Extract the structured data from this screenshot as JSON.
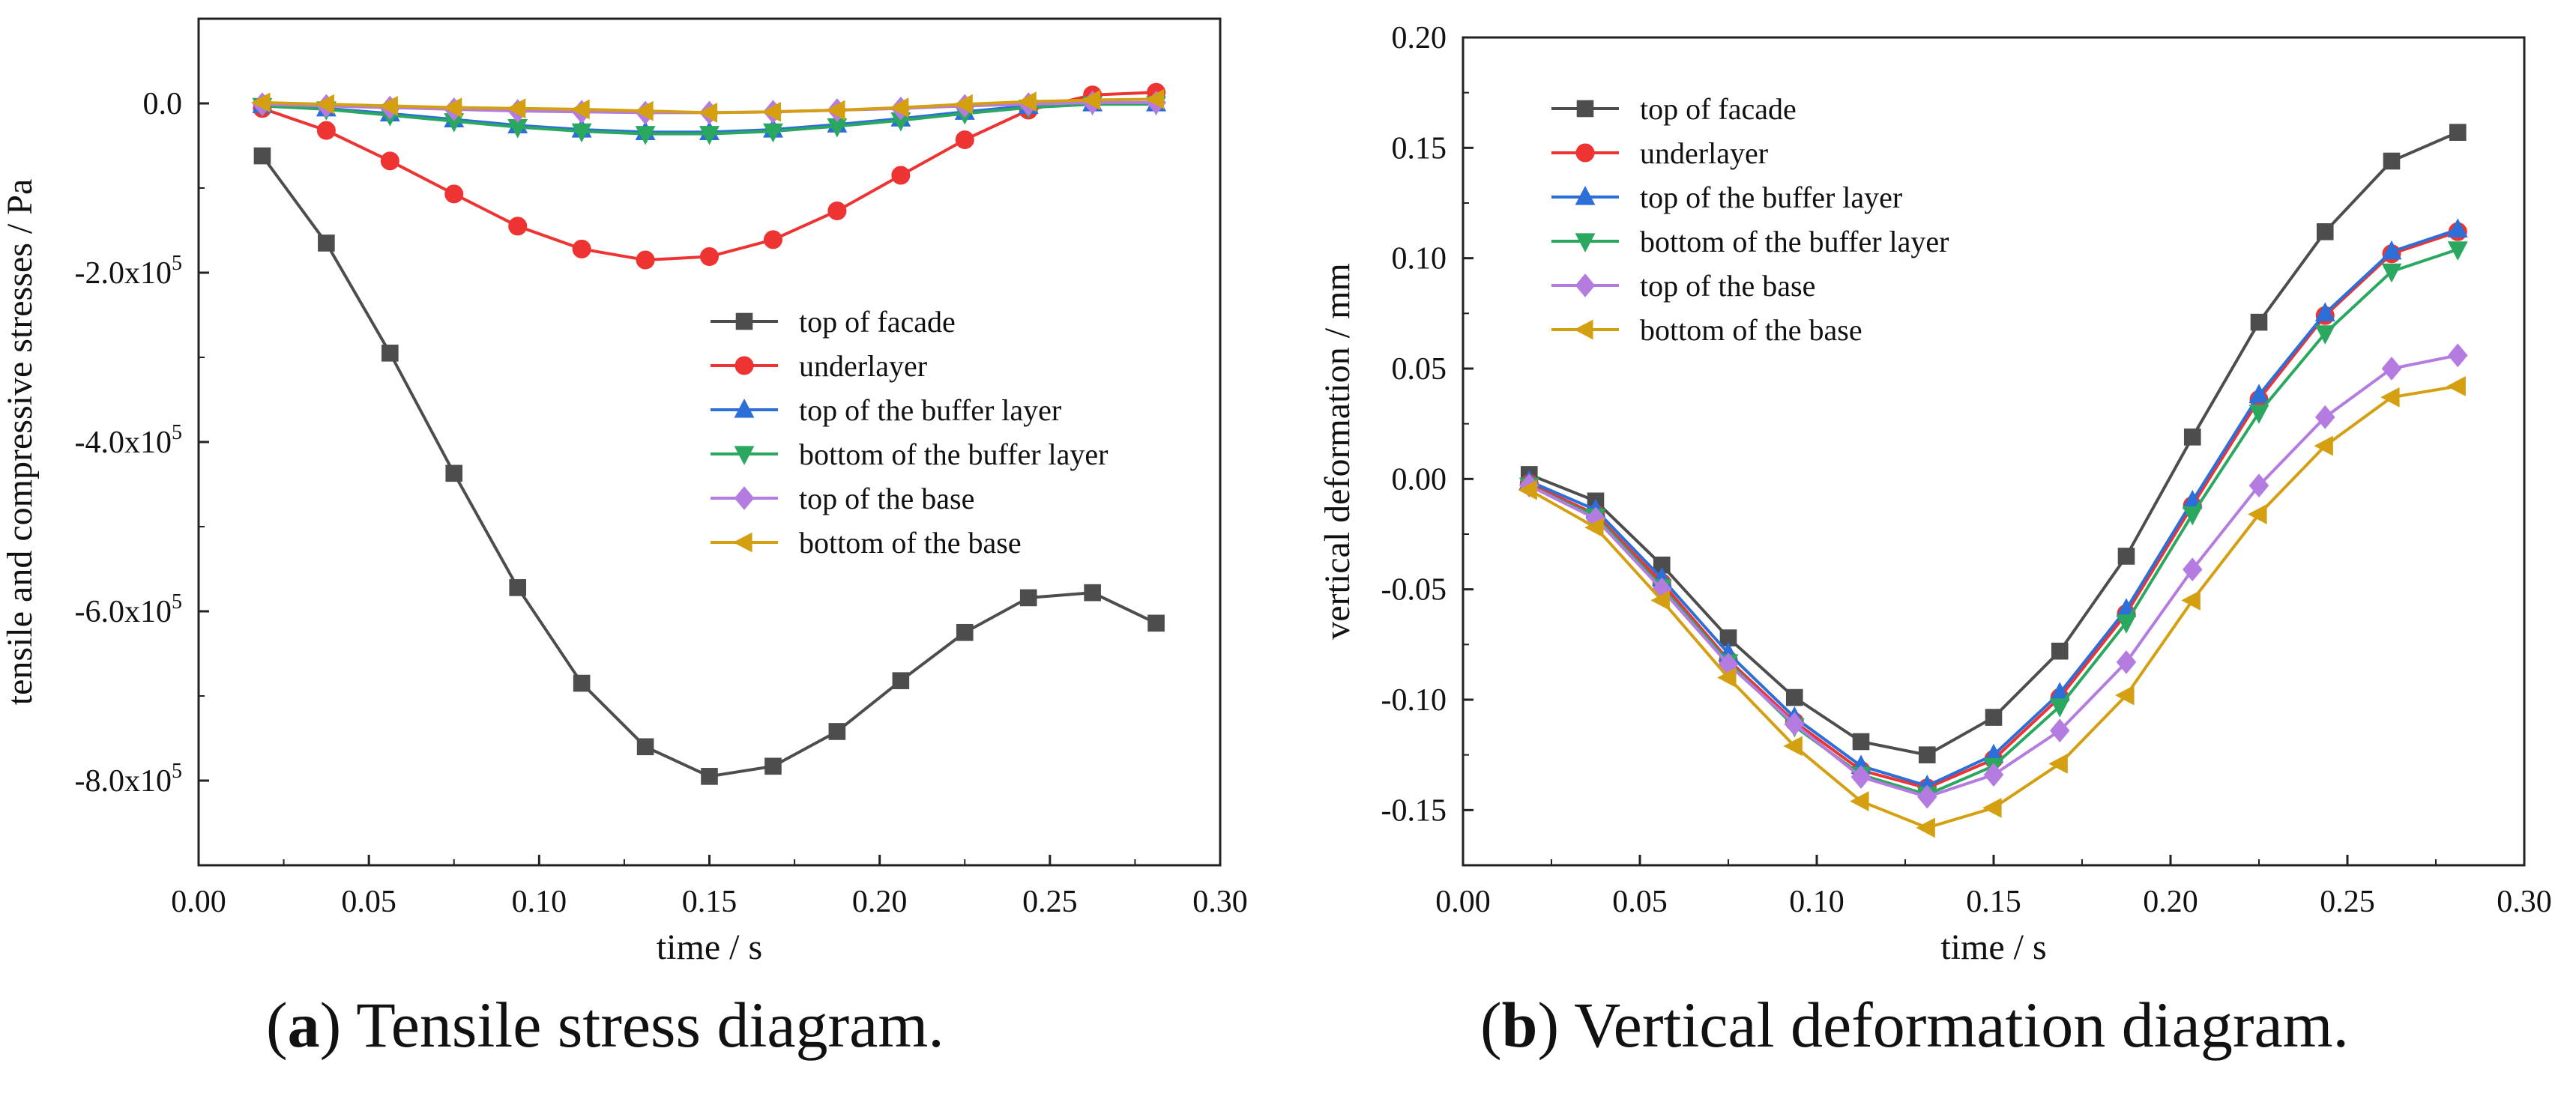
{
  "chart_data": [
    {
      "type": "line",
      "panel": "a",
      "caption_label": "a",
      "caption_text": "Tensile stress diagram.",
      "xlabel": "time / s",
      "ylabel": "tensile and compressive stresses / Pa",
      "xlim": [
        0.0,
        0.3
      ],
      "ylim": [
        -900000,
        100000
      ],
      "x_ticks": [
        0.0,
        0.05,
        0.1,
        0.15,
        0.2,
        0.25,
        0.3
      ],
      "x_tick_labels": [
        "0.00",
        "0.05",
        "0.10",
        "0.15",
        "0.20",
        "0.25",
        "0.30"
      ],
      "y_ticks": [
        0,
        -200000,
        -400000,
        -600000,
        -800000
      ],
      "y_tick_labels": [
        {
          "base": "0.0",
          "exp": ""
        },
        {
          "base": "-2.0x10",
          "exp": "5"
        },
        {
          "base": "-4.0x10",
          "exp": "5"
        },
        {
          "base": "-6.0x10",
          "exp": "5"
        },
        {
          "base": "-8.0x10",
          "exp": "5"
        }
      ],
      "legend_position": "center-right",
      "x": [
        0.0187,
        0.0375,
        0.0562,
        0.075,
        0.0937,
        0.1125,
        0.1312,
        0.15,
        0.1687,
        0.1875,
        0.2062,
        0.225,
        0.2437,
        0.2625,
        0.2812
      ],
      "series": [
        {
          "name": "top of facade",
          "color": "#4d4d4d",
          "marker": "square",
          "values": [
            -62000,
            -165000,
            -295000,
            -437000,
            -572000,
            -685000,
            -760000,
            -795000,
            -783000,
            -742000,
            -682000,
            -625000,
            -584000,
            -578000,
            -614000
          ]
        },
        {
          "name": "underlayer",
          "color": "#ee3333",
          "marker": "circle",
          "values": [
            -6000,
            -32000,
            -68000,
            -107000,
            -145000,
            -172000,
            -185000,
            -181000,
            -161000,
            -127000,
            -85000,
            -43000,
            -8000,
            10000,
            13000
          ]
        },
        {
          "name": "top of the buffer layer",
          "color": "#2d6fd8",
          "marker": "triangle-up",
          "values": [
            -2000,
            -6000,
            -12000,
            -19000,
            -26000,
            -31000,
            -34000,
            -34000,
            -31000,
            -25000,
            -18000,
            -10000,
            -3000,
            0,
            0
          ]
        },
        {
          "name": "bottom of the buffer layer",
          "color": "#2aa860",
          "marker": "triangle-down",
          "values": [
            -3000,
            -7000,
            -14000,
            -21000,
            -28000,
            -33000,
            -36000,
            -36000,
            -33000,
            -27000,
            -20000,
            -12000,
            -5000,
            -1000,
            -1000
          ]
        },
        {
          "name": "top of the base",
          "color": "#b47be0",
          "marker": "diamond",
          "values": [
            -1000,
            -3000,
            -5000,
            -7000,
            -9000,
            -10000,
            -11000,
            -11000,
            -10000,
            -8000,
            -6000,
            -3000,
            -1000,
            1000,
            1000
          ]
        },
        {
          "name": "bottom of the base",
          "color": "#d4a012",
          "marker": "triangle-left",
          "values": [
            1000,
            -1000,
            -3000,
            -5000,
            -6000,
            -7000,
            -9000,
            -11000,
            -10000,
            -8000,
            -5000,
            -1000,
            2000,
            4000,
            5000
          ]
        }
      ]
    },
    {
      "type": "line",
      "panel": "b",
      "caption_label": "b",
      "caption_text": "Vertical deformation diagram.",
      "xlabel": "time / s",
      "ylabel": "vertical deformation / mm",
      "xlim": [
        0.0,
        0.3
      ],
      "ylim": [
        -0.175,
        0.2
      ],
      "x_ticks": [
        0.0,
        0.05,
        0.1,
        0.15,
        0.2,
        0.25,
        0.3
      ],
      "x_tick_labels": [
        "0.00",
        "0.05",
        "0.10",
        "0.15",
        "0.20",
        "0.25",
        "0.30"
      ],
      "y_ticks": [
        0.2,
        0.15,
        0.1,
        0.05,
        0.0,
        -0.05,
        -0.1,
        -0.15
      ],
      "y_tick_labels": [
        "0.20",
        "0.15",
        "0.10",
        "0.05",
        "0.00",
        "-0.05",
        "-0.10",
        "-0.15"
      ],
      "legend_position": "top-left",
      "x": [
        0.0187,
        0.0375,
        0.0562,
        0.075,
        0.0937,
        0.1125,
        0.1312,
        0.15,
        0.1687,
        0.1875,
        0.2062,
        0.225,
        0.2437,
        0.2625,
        0.2812
      ],
      "series": [
        {
          "name": "top of facade",
          "color": "#4d4d4d",
          "marker": "square",
          "values": [
            0.002,
            -0.01,
            -0.039,
            -0.072,
            -0.099,
            -0.119,
            -0.125,
            -0.108,
            -0.078,
            -0.035,
            0.019,
            0.071,
            0.112,
            0.144,
            0.157
          ]
        },
        {
          "name": "underlayer",
          "color": "#ee3333",
          "marker": "circle",
          "values": [
            -0.002,
            -0.016,
            -0.047,
            -0.082,
            -0.11,
            -0.132,
            -0.14,
            -0.127,
            -0.099,
            -0.061,
            -0.012,
            0.036,
            0.074,
            0.102,
            0.112
          ]
        },
        {
          "name": "top of the buffer layer",
          "color": "#2d6fd8",
          "marker": "triangle-up",
          "values": [
            -0.001,
            -0.014,
            -0.045,
            -0.079,
            -0.108,
            -0.13,
            -0.139,
            -0.125,
            -0.097,
            -0.059,
            -0.01,
            0.038,
            0.075,
            0.103,
            0.113
          ]
        },
        {
          "name": "bottom of the buffer layer",
          "color": "#2aa860",
          "marker": "triangle-down",
          "values": [
            -0.003,
            -0.017,
            -0.049,
            -0.083,
            -0.112,
            -0.134,
            -0.143,
            -0.13,
            -0.103,
            -0.065,
            -0.016,
            0.03,
            0.066,
            0.094,
            0.104
          ]
        },
        {
          "name": "top of the base",
          "color": "#b47be0",
          "marker": "diamond",
          "values": [
            -0.003,
            -0.018,
            -0.05,
            -0.084,
            -0.111,
            -0.135,
            -0.144,
            -0.134,
            -0.114,
            -0.083,
            -0.041,
            -0.003,
            0.028,
            0.05,
            0.056
          ]
        },
        {
          "name": "bottom of the base",
          "color": "#d4a012",
          "marker": "triangle-left",
          "values": [
            -0.005,
            -0.022,
            -0.055,
            -0.09,
            -0.121,
            -0.146,
            -0.158,
            -0.149,
            -0.129,
            -0.098,
            -0.055,
            -0.016,
            0.015,
            0.037,
            0.042
          ]
        }
      ]
    }
  ]
}
